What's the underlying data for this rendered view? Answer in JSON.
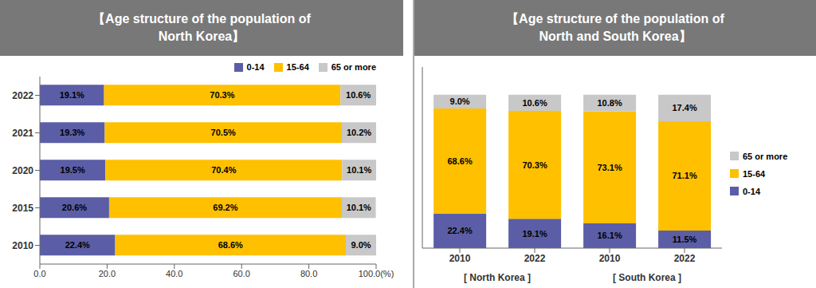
{
  "chart_data": [
    {
      "type": "bar",
      "orientation": "horizontal",
      "stacked": true,
      "data_labels": true,
      "title": "【Age structure of the population of\nNorth Korea】",
      "categories": [
        "2010",
        "2015",
        "2020",
        "2021",
        "2022"
      ],
      "series": [
        {
          "name": "0-14",
          "color": "#5B5EA6",
          "values": [
            22.4,
            20.6,
            19.5,
            19.3,
            19.1
          ],
          "value_labels": [
            "22.4%",
            "20.6%",
            "19.5%",
            "19.3%",
            "19.1%"
          ]
        },
        {
          "name": "15-64",
          "color": "#FFC000",
          "values": [
            68.6,
            69.2,
            70.4,
            70.5,
            70.3
          ],
          "value_labels": [
            "68.6%",
            "69.2%",
            "70.4%",
            "70.5%",
            "70.3%"
          ]
        },
        {
          "name": "65 or more",
          "color": "#C8C8C8",
          "values": [
            9.0,
            10.1,
            10.1,
            10.2,
            10.6
          ],
          "value_labels": [
            "9.0%",
            "10.1%",
            "10.1%",
            "10.2%",
            "10.6%"
          ]
        }
      ],
      "xlim": [
        0,
        100
      ],
      "xticks": [
        {
          "value": 0,
          "label": "0.0"
        },
        {
          "value": 20,
          "label": "20.0"
        },
        {
          "value": 40,
          "label": "40.0"
        },
        {
          "value": 60,
          "label": "60.0"
        },
        {
          "value": 80,
          "label": "80.0"
        },
        {
          "value": 100,
          "label": "100.0(%)"
        }
      ],
      "legend": "upper right",
      "grid": false
    },
    {
      "type": "bar",
      "stacked": true,
      "data_labels": true,
      "title": "【Age structure of the population of\nNorth and South Korea】",
      "categories": [
        "2010",
        "2022",
        "2010",
        "2022"
      ],
      "groups": [
        "[ North Korea ]",
        "[ North Korea ]",
        "[ South Korea ]",
        "[ South Korea ]"
      ],
      "series": [
        {
          "name": "0-14",
          "color": "#5B5EA6",
          "values": [
            22.4,
            19.1,
            16.1,
            11.5
          ],
          "value_labels": [
            "22.4%",
            "19.1%",
            "16.1%",
            "11.5%"
          ]
        },
        {
          "name": "15-64",
          "color": "#FFC000",
          "values": [
            68.6,
            70.3,
            73.1,
            71.1
          ],
          "value_labels": [
            "68.6%",
            "70.3%",
            "73.1%",
            "71.1%"
          ]
        },
        {
          "name": "65 or more",
          "color": "#C8C8C8",
          "values": [
            9.0,
            10.6,
            10.8,
            17.4
          ],
          "value_labels": [
            "9.0%",
            "10.6%",
            "10.8%",
            "17.4%"
          ]
        }
      ],
      "ylim": [
        0,
        118
      ],
      "tick_labels": "x",
      "legend": "right",
      "grid": false
    }
  ]
}
